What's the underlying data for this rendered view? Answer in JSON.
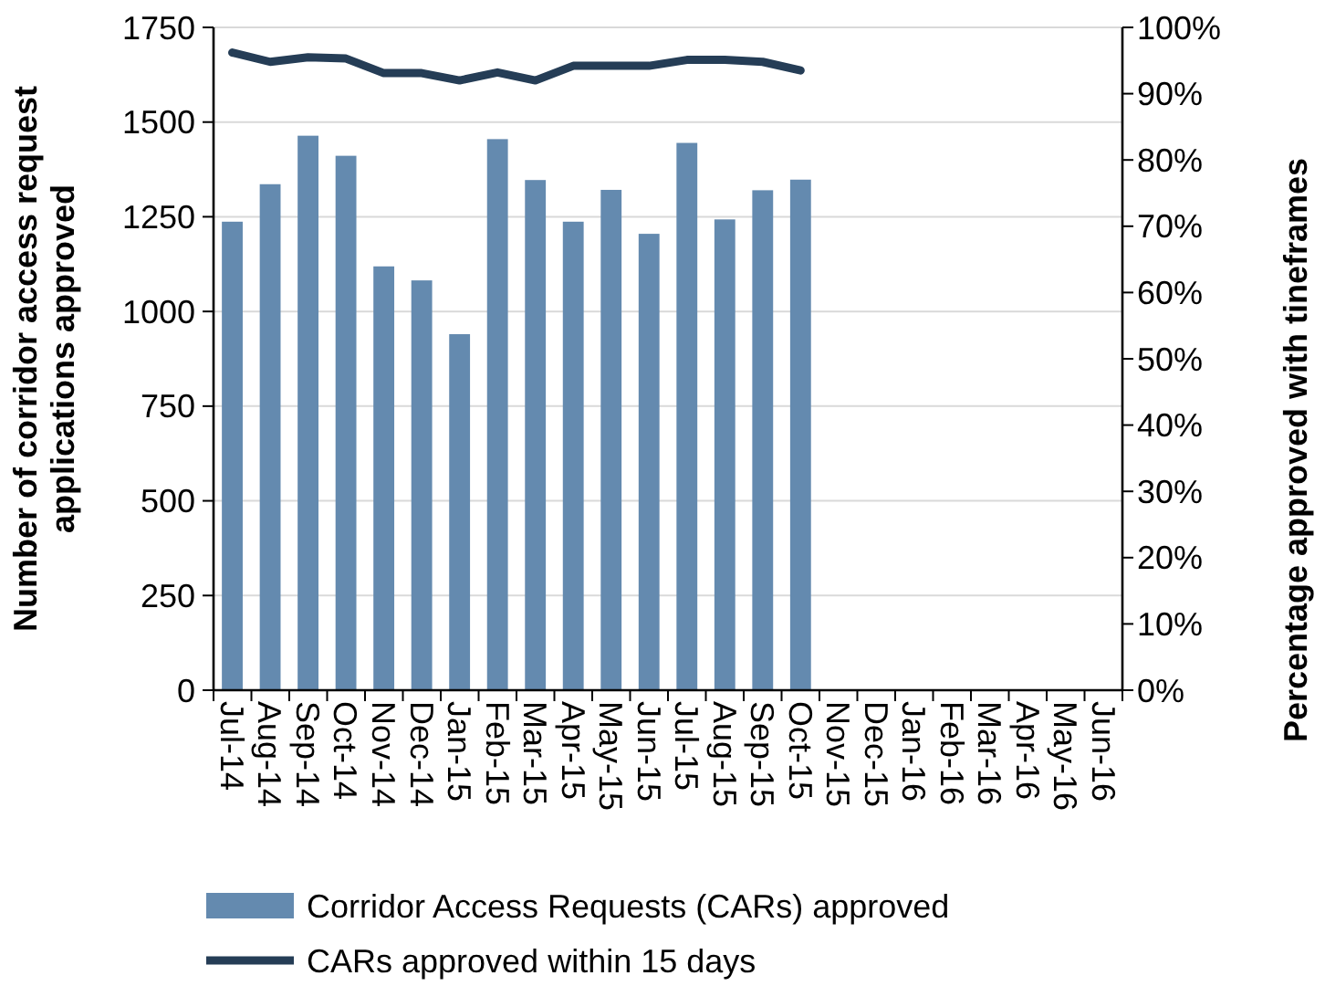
{
  "chart_data": {
    "type": "bar",
    "ylabel": "Number of corridor access request applications approved",
    "y2label": "Percentage approved with tineframes",
    "categories": [
      "Jul-14",
      "Aug-14",
      "Sep-14",
      "Oct-14",
      "Nov-14",
      "Dec-14",
      "Jan-15",
      "Feb-15",
      "Mar-15",
      "Apr-15",
      "May-15",
      "Jun-15",
      "Jul-15",
      "Aug-15",
      "Sep-15",
      "Oct-15",
      "Nov-15",
      "Dec-15",
      "Jan-16",
      "Feb-16",
      "Mar-16",
      "Apr-16",
      "May-16",
      "Jun-16"
    ],
    "series": [
      {
        "name": "Corridor Access Requests (CARs) approved",
        "color": "#648aaf",
        "values": [
          1237,
          1336,
          1464,
          1411,
          1119,
          1082,
          940,
          1455,
          1347,
          1237,
          1321,
          1205,
          1445,
          1243,
          1320,
          1348,
          null,
          null,
          null,
          null,
          null,
          null,
          null,
          null
        ]
      },
      {
        "name": "CARs approved within 15 days",
        "type": "line",
        "axis": "y2",
        "color": "#253d56",
        "values": [
          96.2,
          94.8,
          95.5,
          95.3,
          93.1,
          93.1,
          92.0,
          93.2,
          92.0,
          94.2,
          94.2,
          94.2,
          95.1,
          95.1,
          94.8,
          93.5,
          null,
          null,
          null,
          null,
          null,
          null,
          null,
          null
        ]
      }
    ],
    "ylim": [
      0,
      1750
    ],
    "yticks": [
      0,
      250,
      500,
      750,
      1000,
      1250,
      1500,
      1750
    ],
    "y2lim": [
      0,
      100
    ],
    "y2ticks": [
      {
        "value": 0,
        "label": "0%"
      },
      {
        "value": 10,
        "label": "10%"
      },
      {
        "value": 20,
        "label": "20%"
      },
      {
        "value": 30,
        "label": "30%"
      },
      {
        "value": 40,
        "label": "40%"
      },
      {
        "value": 50,
        "label": "50%"
      },
      {
        "value": 60,
        "label": "60%"
      },
      {
        "value": 70,
        "label": "70%"
      },
      {
        "value": 80,
        "label": "80%"
      },
      {
        "value": 90,
        "label": "90%"
      },
      {
        "value": 100,
        "label": "100%"
      }
    ],
    "grid": "y",
    "legend": "bottom"
  }
}
